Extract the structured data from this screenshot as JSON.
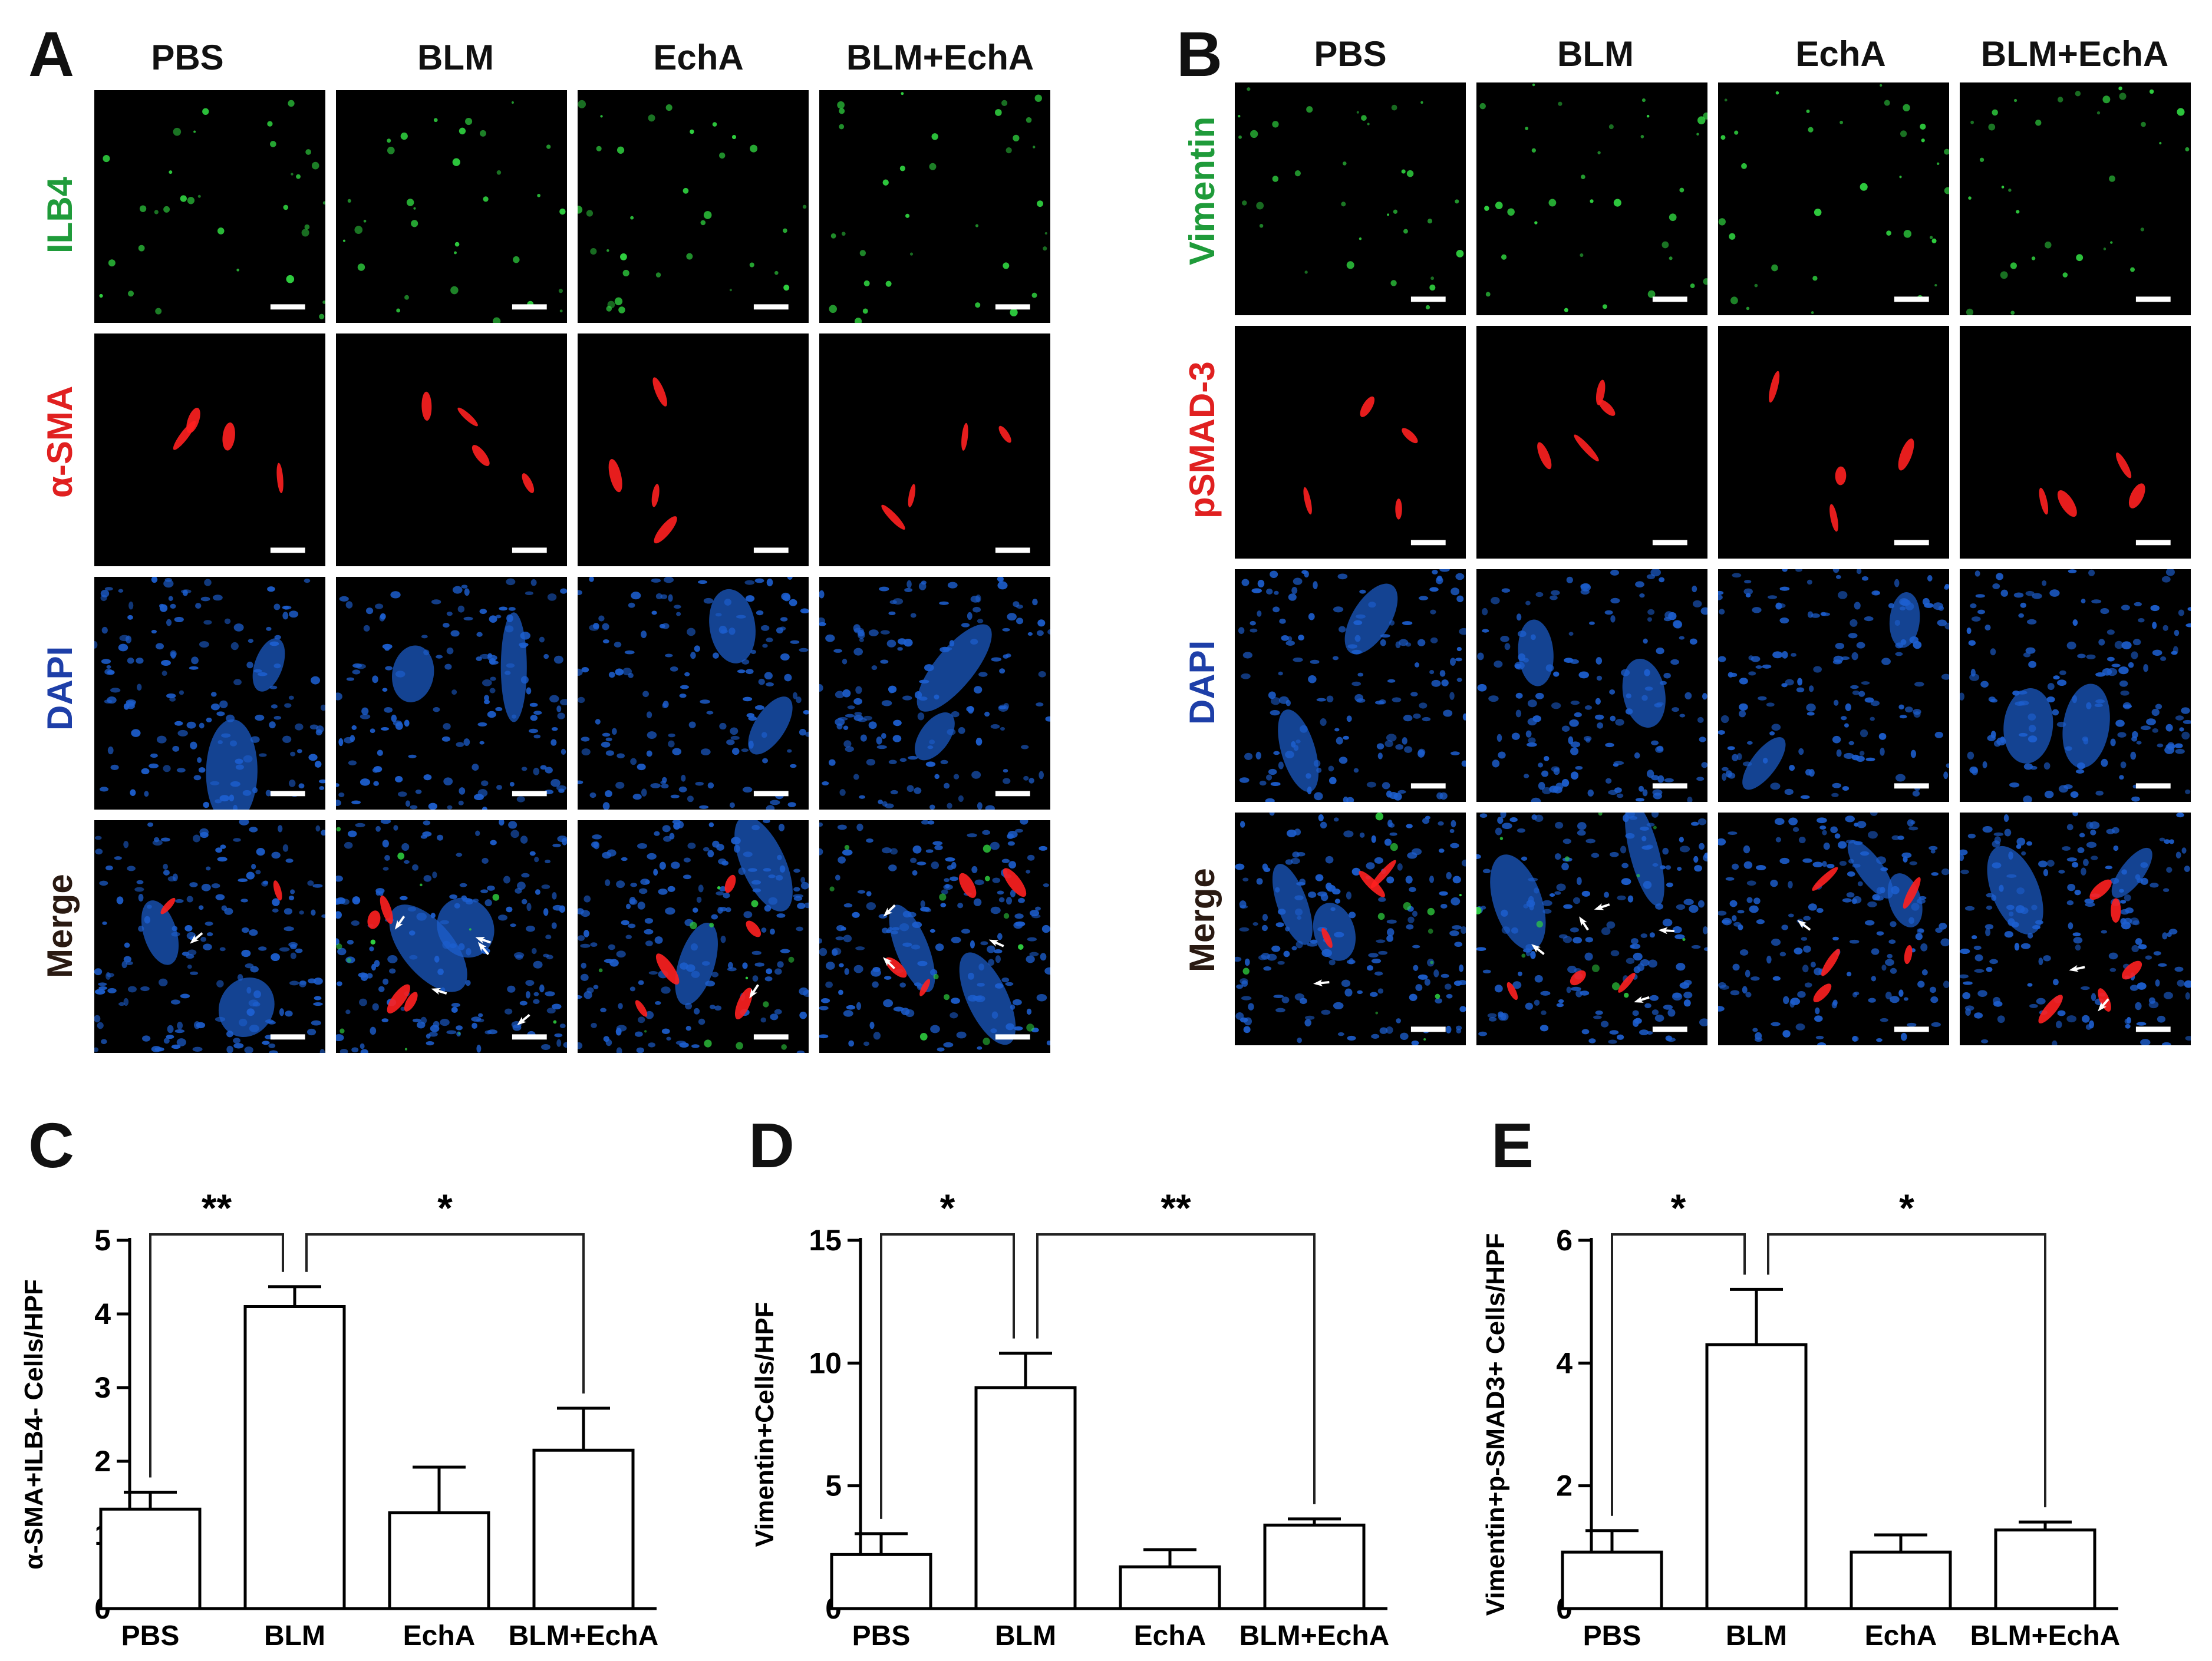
{
  "panel_letters": {
    "A": "A",
    "B": "B",
    "C": "C",
    "D": "D",
    "E": "E"
  },
  "panelA": {
    "columns": [
      "PBS",
      "BLM",
      "EchA",
      "BLM+EchA"
    ],
    "rows": [
      {
        "label": "ILB4",
        "color": "#1f9b3a"
      },
      {
        "label": "α-SMA",
        "color": "#e02020"
      },
      {
        "label": "DAPI",
        "color": "#1e3fa8"
      },
      {
        "label": "Merge",
        "color": "#2a1a12"
      }
    ]
  },
  "panelB": {
    "columns": [
      "PBS",
      "BLM",
      "EchA",
      "BLM+EchA"
    ],
    "rows": [
      {
        "label": "Vimentin",
        "color": "#1f9b3a"
      },
      {
        "label": "pSMAD-3",
        "color": "#e02020"
      },
      {
        "label": "DAPI",
        "color": "#1e3fa8"
      },
      {
        "label": "Merge",
        "color": "#2a1a12"
      }
    ]
  },
  "chart_data": [
    {
      "panel": "C",
      "type": "bar",
      "categories": [
        "PBS",
        "BLM",
        "EchA",
        "BLM+EchA"
      ],
      "values": [
        1.35,
        4.1,
        1.3,
        2.15
      ],
      "errors": [
        0.23,
        0.27,
        0.62,
        0.57
      ],
      "ylabel": "α-SMA+ILB4- Cells/HPF",
      "ylim": [
        0,
        5
      ],
      "yticks": [
        0,
        1,
        2,
        3,
        4,
        5
      ],
      "significance": [
        {
          "from": "PBS",
          "to": "BLM",
          "label": "**"
        },
        {
          "from": "BLM",
          "to": "BLM+EchA",
          "label": "*"
        }
      ]
    },
    {
      "panel": "D",
      "type": "bar",
      "categories": [
        "PBS",
        "BLM",
        "EchA",
        "BLM+EchA"
      ],
      "values": [
        2.2,
        9.0,
        1.7,
        3.4
      ],
      "errors": [
        0.85,
        1.4,
        0.7,
        0.25
      ],
      "ylabel": "Vimentin+Cells/HPF",
      "ylim": [
        0,
        15
      ],
      "yticks": [
        0,
        5,
        10,
        15
      ],
      "significance": [
        {
          "from": "PBS",
          "to": "BLM",
          "label": "*"
        },
        {
          "from": "BLM",
          "to": "BLM+EchA",
          "label": "**"
        }
      ]
    },
    {
      "panel": "E",
      "type": "bar",
      "categories": [
        "PBS",
        "BLM",
        "EchA",
        "BLM+EchA"
      ],
      "values": [
        0.92,
        4.3,
        0.92,
        1.28
      ],
      "errors": [
        0.35,
        0.9,
        0.28,
        0.13
      ],
      "ylabel": "Vimentin+p-SMAD3+ Cells/HPF",
      "ylim": [
        0,
        6
      ],
      "yticks": [
        0,
        2,
        4,
        6
      ],
      "significance": [
        {
          "from": "PBS",
          "to": "BLM",
          "label": "*"
        },
        {
          "from": "BLM",
          "to": "BLM+EchA",
          "label": "*"
        }
      ]
    }
  ]
}
